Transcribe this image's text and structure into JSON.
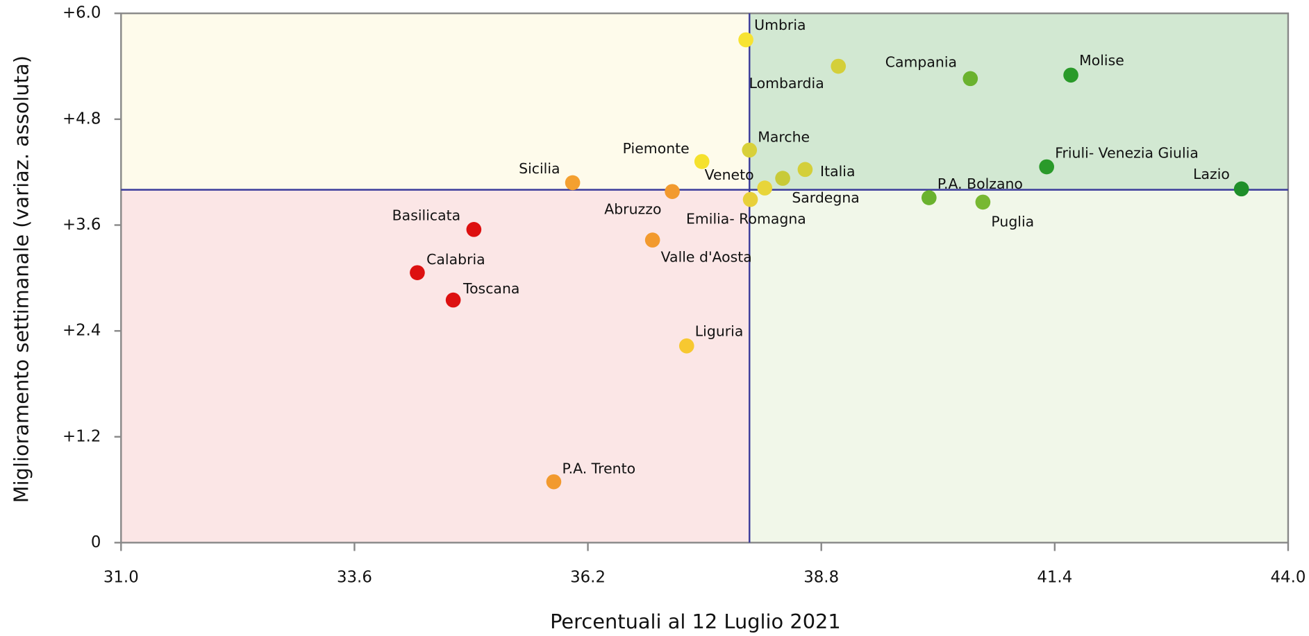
{
  "chart_data": {
    "type": "scatter",
    "xlabel": "Percentuali al 12 Luglio 2021",
    "ylabel": "Miglioramento settimanale (variaz. assoluta)",
    "labels": [
      "Umbria",
      "Lombardia",
      "Campania",
      "Molise",
      "Marche",
      "Piemonte",
      "Friuli- Venezia Giulia",
      "Italia",
      "Veneto",
      "Sardegna",
      "Sicilia",
      "Abruzzo",
      "Lazio",
      "P.A. Bolzano",
      "Emilia- Romagna",
      "Puglia",
      "Basilicata",
      "Valle d'Aosta",
      "Calabria",
      "Toscana",
      "Liguria",
      "P.A. Trento"
    ],
    "x": [
      37.96,
      38.99,
      40.46,
      41.58,
      38.0,
      37.47,
      41.31,
      38.62,
      38.17,
      38.37,
      36.03,
      37.14,
      43.48,
      40.0,
      38.01,
      40.6,
      34.93,
      36.92,
      34.3,
      34.7,
      37.3,
      35.82
    ],
    "y": [
      5.7,
      5.4,
      5.26,
      5.3,
      4.45,
      4.32,
      4.26,
      4.23,
      4.02,
      4.13,
      4.08,
      3.98,
      4.01,
      3.91,
      3.89,
      3.86,
      3.55,
      3.43,
      3.06,
      2.75,
      2.23,
      0.69
    ],
    "colors": [
      "#f7e332",
      "#d4cf3a",
      "#6ab22e",
      "#2a9a2a",
      "#d8d03a",
      "#f5e12d",
      "#2a9a2a",
      "#d4cf3a",
      "#e8d53a",
      "#c8ca38",
      "#f4a030",
      "#f29a2e",
      "#1f8f2a",
      "#6ab22e",
      "#e8d03a",
      "#78b832",
      "#dd1010",
      "#f29a2e",
      "#dd1010",
      "#dd1010",
      "#f7c830",
      "#f29a2e"
    ],
    "xlim": [
      31.0,
      44.0
    ],
    "xticks": [
      {
        "value": 31.0,
        "label": "31.0"
      },
      {
        "value": 33.6,
        "label": "33.6"
      },
      {
        "value": 36.2,
        "label": "36.2"
      },
      {
        "value": 38.8,
        "label": "38.8"
      },
      {
        "value": 41.4,
        "label": "41.4"
      },
      {
        "value": 44.0,
        "label": "44.0"
      }
    ],
    "ylim": [
      0,
      6.0
    ],
    "yticks": [
      0,
      {
        "value": 1.2,
        "label": "+1.2"
      },
      {
        "value": 2.4,
        "label": "+2.4"
      },
      {
        "value": 3.6,
        "label": "+3.6"
      },
      {
        "value": 4.8,
        "label": "+4.8"
      },
      {
        "value": 6.0,
        "label": "+6.0"
      }
    ],
    "x_split": 38.0,
    "y_split": 4.0,
    "quadrant_colors": {
      "top_left": "#fefbeb",
      "top_right": "#d2e8d2",
      "bottom_left": "#fbe6e6",
      "bottom_right": "#f1f7e9"
    },
    "split_color": "#3a3a9a"
  }
}
